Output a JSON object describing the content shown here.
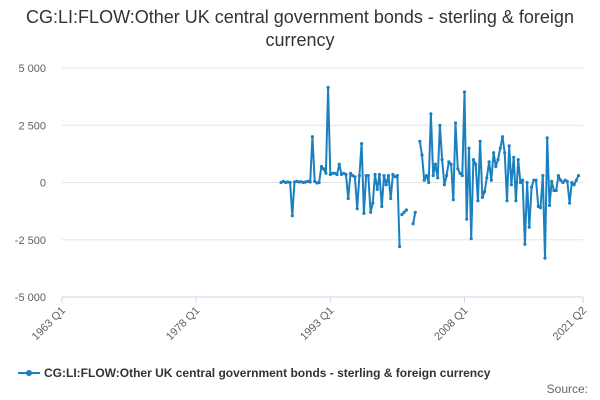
{
  "chart_data": {
    "type": "line",
    "title": "CG:LI:FLOW:Other UK central government bonds - sterling & foreign currency",
    "xlabel": "",
    "ylabel": "",
    "ylim": [
      -5000,
      5000
    ],
    "yticks": [
      5000,
      2500,
      0,
      -2500,
      -5000
    ],
    "ytick_labels": [
      "5 000",
      "2 500",
      "0",
      "-2 500",
      "-5 000"
    ],
    "xlim": [
      1963,
      2021.25
    ],
    "xticks": [
      1963,
      1978,
      1993,
      2008,
      2021.25
    ],
    "xtick_labels": [
      "1963 Q1",
      "1978 Q1",
      "1993 Q1",
      "2008 Q1",
      "2021 Q2"
    ],
    "grid": "horizontal",
    "legend_position": "bottom",
    "color": "#1a80c0",
    "series": [
      {
        "name": "CG:LI:FLOW:Other UK central government bonds - sterling & foreign currency",
        "segments": [
          [
            [
              1987.5,
              0
            ],
            [
              1987.75,
              50
            ],
            [
              1988.0,
              0
            ],
            [
              1988.25,
              20
            ],
            [
              1988.5,
              0
            ],
            [
              1988.75,
              -1450
            ],
            [
              1989.0,
              20
            ],
            [
              1989.25,
              50
            ],
            [
              1989.5,
              20
            ],
            [
              1989.75,
              30
            ],
            [
              1990.0,
              0
            ],
            [
              1990.25,
              20
            ],
            [
              1990.5,
              50
            ],
            [
              1990.75,
              20
            ],
            [
              1991.0,
              2000
            ],
            [
              1991.25,
              50
            ],
            [
              1991.5,
              -20
            ],
            [
              1991.75,
              0
            ],
            [
              1992.0,
              700
            ],
            [
              1992.25,
              600
            ],
            [
              1992.5,
              400
            ],
            [
              1992.75,
              4150
            ],
            [
              1993.0,
              350
            ],
            [
              1993.25,
              400
            ],
            [
              1993.5,
              400
            ],
            [
              1993.75,
              350
            ],
            [
              1994.0,
              800
            ],
            [
              1994.25,
              350
            ],
            [
              1994.5,
              400
            ],
            [
              1994.75,
              350
            ],
            [
              1995.0,
              -700
            ],
            [
              1995.25,
              400
            ],
            [
              1995.5,
              300
            ],
            [
              1995.75,
              250
            ],
            [
              1996.0,
              -1150
            ],
            [
              1996.25,
              300
            ],
            [
              1996.5,
              1700
            ],
            [
              1996.75,
              -1350
            ],
            [
              1997.0,
              300
            ],
            [
              1997.25,
              300
            ],
            [
              1997.5,
              -1300
            ],
            [
              1997.75,
              -900
            ],
            [
              1998.0,
              350
            ],
            [
              1998.25,
              -300
            ],
            [
              1998.5,
              350
            ],
            [
              1998.75,
              -1050
            ],
            [
              1999.0,
              300
            ],
            [
              1999.25,
              -100
            ],
            [
              1999.5,
              300
            ],
            [
              1999.75,
              -700
            ],
            [
              2000.0,
              350
            ],
            [
              2000.25,
              250
            ],
            [
              2000.5,
              300
            ],
            [
              2000.75,
              -2800
            ]
          ],
          [
            [
              2001.0,
              -1400
            ],
            [
              2001.25,
              -1300
            ],
            [
              2001.5,
              -1200
            ]
          ],
          [
            [
              2002.25,
              -1800
            ],
            [
              2002.5,
              -1300
            ]
          ],
          [
            [
              2003.0,
              1800
            ],
            [
              2003.25,
              1200
            ],
            [
              2003.5,
              100
            ],
            [
              2003.75,
              300
            ],
            [
              2004.0,
              0
            ],
            [
              2004.25,
              3000
            ],
            [
              2004.5,
              300
            ],
            [
              2004.75,
              800
            ],
            [
              2005.0,
              200
            ],
            [
              2005.25,
              2500
            ],
            [
              2005.5,
              1000
            ],
            [
              2005.75,
              -100
            ],
            [
              2006.0,
              300
            ],
            [
              2006.25,
              900
            ],
            [
              2006.5,
              800
            ],
            [
              2006.75,
              -750
            ],
            [
              2007.0,
              2600
            ],
            [
              2007.25,
              600
            ],
            [
              2007.5,
              400
            ],
            [
              2007.75,
              300
            ],
            [
              2008.0,
              3950
            ],
            [
              2008.25,
              -1600
            ],
            [
              2008.5,
              1500
            ],
            [
              2008.75,
              -2450
            ],
            [
              2009.0,
              1000
            ],
            [
              2009.25,
              800
            ],
            [
              2009.5,
              -800
            ],
            [
              2009.75,
              1800
            ],
            [
              2010.0,
              -650
            ],
            [
              2010.25,
              -400
            ],
            [
              2010.5,
              200
            ],
            [
              2010.75,
              900
            ],
            [
              2011.0,
              100
            ],
            [
              2011.25,
              1300
            ],
            [
              2011.5,
              700
            ],
            [
              2011.75,
              1000
            ],
            [
              2012.0,
              1500
            ],
            [
              2012.25,
              2000
            ],
            [
              2012.5,
              1300
            ],
            [
              2012.75,
              -800
            ],
            [
              2013.0,
              1600
            ],
            [
              2013.25,
              -100
            ],
            [
              2013.5,
              1100
            ],
            [
              2013.75,
              -800
            ],
            [
              2014.0,
              1000
            ],
            [
              2014.25,
              0
            ],
            [
              2014.5,
              100
            ],
            [
              2014.75,
              -2700
            ],
            [
              2015.0,
              0
            ],
            [
              2015.25,
              -1950
            ],
            [
              2015.5,
              -200
            ],
            [
              2015.75,
              100
            ],
            [
              2016.0,
              100
            ],
            [
              2016.25,
              -1050
            ],
            [
              2016.5,
              -1100
            ],
            [
              2016.75,
              300
            ],
            [
              2017.0,
              -3300
            ],
            [
              2017.25,
              1950
            ],
            [
              2017.5,
              -1000
            ],
            [
              2017.75,
              50
            ],
            [
              2018.0,
              -350
            ],
            [
              2018.25,
              -350
            ],
            [
              2018.5,
              300
            ],
            [
              2018.75,
              100
            ],
            [
              2019.0,
              0
            ],
            [
              2019.25,
              100
            ],
            [
              2019.5,
              50
            ],
            [
              2019.75,
              -900
            ],
            [
              2020.0,
              0
            ],
            [
              2020.25,
              -100
            ],
            [
              2020.5,
              100
            ],
            [
              2020.75,
              300
            ]
          ]
        ]
      }
    ]
  },
  "legend": {
    "label": "CG:LI:FLOW:Other UK central government bonds - sterling & foreign currency"
  },
  "source": {
    "label": "Source:"
  }
}
